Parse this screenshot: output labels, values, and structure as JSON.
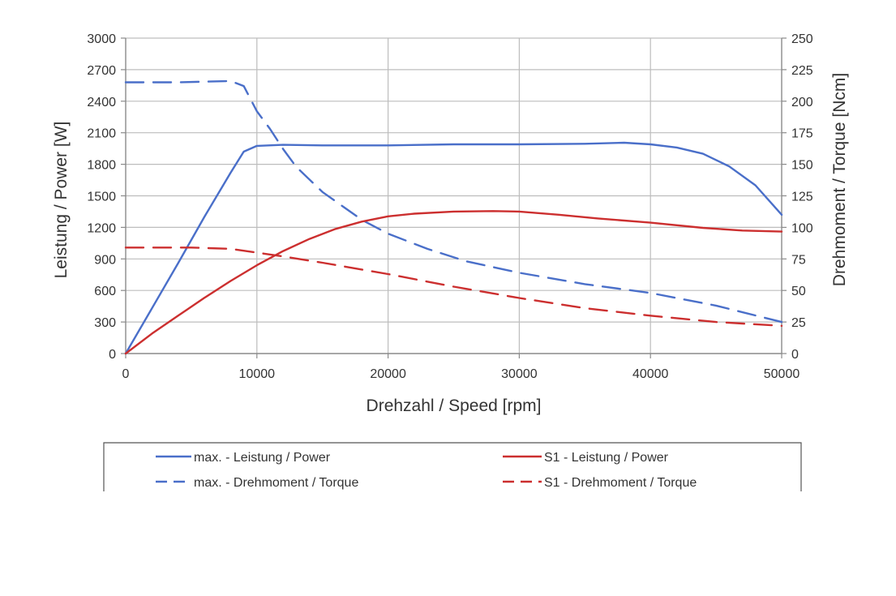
{
  "chart_data": {
    "type": "line",
    "xlabel": "Drehzahl / Speed [rpm]",
    "ylabel_left": "Leistung / Power [W]",
    "ylabel_right": "Drehmoment / Torque [Ncm]",
    "xlim": [
      0,
      50000
    ],
    "ylim_left": [
      0,
      3000
    ],
    "ylim_right": [
      0,
      250
    ],
    "x_ticks": [
      0,
      10000,
      20000,
      30000,
      40000,
      50000
    ],
    "y_left_ticks": [
      0,
      300,
      600,
      900,
      1200,
      1500,
      1800,
      2100,
      2400,
      2700,
      3000
    ],
    "y_right_ticks": [
      0,
      25,
      50,
      75,
      100,
      125,
      150,
      175,
      200,
      225,
      250
    ],
    "grid": true,
    "legend_position": "bottom",
    "series": [
      {
        "name": "max. - Leistung / Power",
        "axis": "left",
        "style": "solid",
        "color": "#4a6fc9",
        "points": [
          [
            0,
            0
          ],
          [
            2000,
            430
          ],
          [
            4000,
            860
          ],
          [
            6000,
            1300
          ],
          [
            8000,
            1720
          ],
          [
            9000,
            1920
          ],
          [
            10000,
            1975
          ],
          [
            12000,
            1985
          ],
          [
            15000,
            1980
          ],
          [
            20000,
            1980
          ],
          [
            25000,
            1990
          ],
          [
            30000,
            1990
          ],
          [
            35000,
            1995
          ],
          [
            38000,
            2005
          ],
          [
            40000,
            1990
          ],
          [
            42000,
            1960
          ],
          [
            44000,
            1900
          ],
          [
            46000,
            1780
          ],
          [
            48000,
            1600
          ],
          [
            50000,
            1320
          ]
        ]
      },
      {
        "name": "max. - Drehmoment / Torque",
        "axis": "right",
        "style": "dashed",
        "color": "#4a6fc9",
        "points": [
          [
            0,
            215
          ],
          [
            4000,
            215
          ],
          [
            8000,
            216
          ],
          [
            9000,
            212
          ],
          [
            10000,
            192
          ],
          [
            11000,
            178
          ],
          [
            12000,
            162
          ],
          [
            13000,
            148
          ],
          [
            15000,
            128
          ],
          [
            18000,
            106
          ],
          [
            20000,
            95
          ],
          [
            23000,
            83
          ],
          [
            26000,
            73
          ],
          [
            30000,
            64
          ],
          [
            35000,
            55
          ],
          [
            40000,
            48
          ],
          [
            45000,
            38
          ],
          [
            50000,
            25
          ]
        ]
      },
      {
        "name": "S1 - Leistung / Power",
        "axis": "left",
        "style": "solid",
        "color": "#cc2f2f",
        "points": [
          [
            0,
            0
          ],
          [
            2000,
            190
          ],
          [
            4000,
            360
          ],
          [
            6000,
            530
          ],
          [
            8000,
            690
          ],
          [
            10000,
            840
          ],
          [
            12000,
            975
          ],
          [
            14000,
            1090
          ],
          [
            16000,
            1185
          ],
          [
            18000,
            1255
          ],
          [
            20000,
            1305
          ],
          [
            22000,
            1330
          ],
          [
            25000,
            1350
          ],
          [
            28000,
            1355
          ],
          [
            30000,
            1350
          ],
          [
            33000,
            1320
          ],
          [
            36000,
            1285
          ],
          [
            40000,
            1245
          ],
          [
            44000,
            1195
          ],
          [
            47000,
            1170
          ],
          [
            50000,
            1160
          ]
        ]
      },
      {
        "name": "S1 - Drehmoment / Torque",
        "axis": "right",
        "style": "dashed",
        "color": "#cc2f2f",
        "points": [
          [
            0,
            84
          ],
          [
            5000,
            84
          ],
          [
            8000,
            83
          ],
          [
            10000,
            80
          ],
          [
            12000,
            77
          ],
          [
            15000,
            72
          ],
          [
            20000,
            63
          ],
          [
            25000,
            53
          ],
          [
            30000,
            44
          ],
          [
            35000,
            36
          ],
          [
            40000,
            30
          ],
          [
            45000,
            25
          ],
          [
            50000,
            22
          ]
        ]
      }
    ]
  }
}
